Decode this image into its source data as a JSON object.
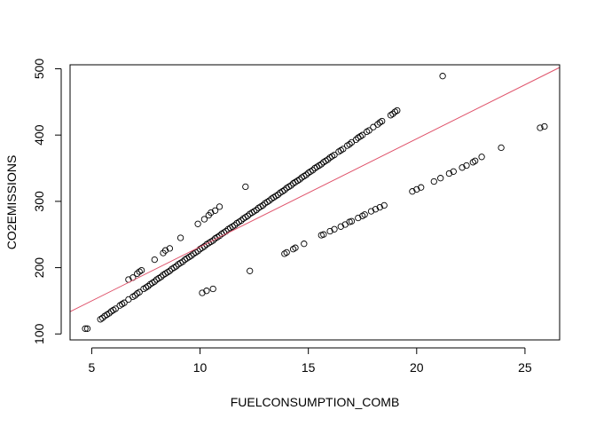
{
  "chart_data": {
    "type": "scatter",
    "title": "",
    "xlabel": "FUELCONSUMPTION_COMB",
    "ylabel": "CO2EMISSIONS",
    "xlim": [
      4,
      26.6
    ],
    "ylim": [
      91,
      506
    ],
    "xticks": [
      5,
      10,
      15,
      20,
      25
    ],
    "yticks": [
      100,
      200,
      300,
      400,
      500
    ],
    "xtick_labels": [
      "5",
      "10",
      "15",
      "20",
      "25"
    ],
    "ytick_labels": [
      "100",
      "200",
      "300",
      "400",
      "500"
    ],
    "grid": false,
    "legend": "none",
    "regression_line": {
      "intercept": 68.4,
      "slope": 16.3,
      "color": "#DF536B"
    },
    "series": [
      {
        "marker": "open-circle",
        "color": "#000000",
        "points": [
          [
            4.7,
            108
          ],
          [
            4.8,
            108
          ],
          [
            5.4,
            122
          ],
          [
            5.5,
            124
          ],
          [
            5.6,
            127
          ],
          [
            5.7,
            129
          ],
          [
            5.8,
            131
          ],
          [
            5.9,
            134
          ],
          [
            6.0,
            136
          ],
          [
            6.1,
            138
          ],
          [
            6.3,
            143
          ],
          [
            6.4,
            145
          ],
          [
            6.5,
            147
          ],
          [
            6.7,
            152
          ],
          [
            6.9,
            156
          ],
          [
            7.0,
            158
          ],
          [
            7.1,
            161
          ],
          [
            7.2,
            163
          ],
          [
            7.4,
            168
          ],
          [
            7.5,
            170
          ],
          [
            7.6,
            172
          ],
          [
            7.7,
            175
          ],
          [
            7.8,
            177
          ],
          [
            7.9,
            179
          ],
          [
            8.0,
            182
          ],
          [
            8.1,
            184
          ],
          [
            8.2,
            186
          ],
          [
            8.3,
            189
          ],
          [
            8.4,
            191
          ],
          [
            8.5,
            193
          ],
          [
            8.6,
            195
          ],
          [
            8.7,
            198
          ],
          [
            8.8,
            200
          ],
          [
            8.9,
            202
          ],
          [
            9.0,
            205
          ],
          [
            9.1,
            207
          ],
          [
            9.2,
            209
          ],
          [
            9.3,
            212
          ],
          [
            9.4,
            214
          ],
          [
            9.5,
            216
          ],
          [
            9.6,
            218
          ],
          [
            9.7,
            221
          ],
          [
            9.8,
            223
          ],
          [
            9.9,
            225
          ],
          [
            10.0,
            228
          ],
          [
            10.1,
            230
          ],
          [
            10.2,
            232
          ],
          [
            10.3,
            235
          ],
          [
            10.4,
            237
          ],
          [
            10.5,
            239
          ],
          [
            10.6,
            241
          ],
          [
            10.7,
            244
          ],
          [
            10.8,
            246
          ],
          [
            10.9,
            248
          ],
          [
            11.0,
            251
          ],
          [
            11.1,
            253
          ],
          [
            11.2,
            255
          ],
          [
            11.3,
            258
          ],
          [
            11.4,
            260
          ],
          [
            11.5,
            262
          ],
          [
            11.6,
            264
          ],
          [
            11.7,
            267
          ],
          [
            11.8,
            269
          ],
          [
            11.9,
            271
          ],
          [
            12.0,
            274
          ],
          [
            12.1,
            276
          ],
          [
            12.2,
            278
          ],
          [
            12.3,
            281
          ],
          [
            12.4,
            283
          ],
          [
            12.5,
            285
          ],
          [
            12.6,
            287
          ],
          [
            12.7,
            290
          ],
          [
            12.8,
            292
          ],
          [
            12.9,
            294
          ],
          [
            13.0,
            297
          ],
          [
            13.1,
            299
          ],
          [
            13.2,
            301
          ],
          [
            13.3,
            304
          ],
          [
            13.4,
            306
          ],
          [
            13.5,
            308
          ],
          [
            13.6,
            310
          ],
          [
            13.7,
            313
          ],
          [
            13.8,
            315
          ],
          [
            13.9,
            317
          ],
          [
            14.0,
            320
          ],
          [
            14.1,
            322
          ],
          [
            14.2,
            324
          ],
          [
            14.3,
            327
          ],
          [
            14.4,
            329
          ],
          [
            14.5,
            331
          ],
          [
            14.6,
            333
          ],
          [
            14.7,
            336
          ],
          [
            14.8,
            338
          ],
          [
            14.9,
            340
          ],
          [
            15.0,
            343
          ],
          [
            15.1,
            345
          ],
          [
            15.2,
            347
          ],
          [
            15.3,
            350
          ],
          [
            15.4,
            352
          ],
          [
            15.5,
            354
          ],
          [
            15.6,
            356
          ],
          [
            15.7,
            359
          ],
          [
            15.8,
            361
          ],
          [
            15.9,
            363
          ],
          [
            16.0,
            366
          ],
          [
            16.1,
            368
          ],
          [
            16.2,
            370
          ],
          [
            16.4,
            375
          ],
          [
            16.5,
            377
          ],
          [
            16.6,
            379
          ],
          [
            16.8,
            384
          ],
          [
            16.9,
            386
          ],
          [
            17.0,
            389
          ],
          [
            17.2,
            393
          ],
          [
            17.3,
            396
          ],
          [
            17.4,
            398
          ],
          [
            17.5,
            400
          ],
          [
            17.7,
            405
          ],
          [
            17.8,
            407
          ],
          [
            18.0,
            412
          ],
          [
            18.2,
            416
          ],
          [
            18.3,
            419
          ],
          [
            18.4,
            421
          ],
          [
            18.8,
            430
          ],
          [
            18.9,
            432
          ],
          [
            19.0,
            435
          ],
          [
            19.1,
            437
          ],
          [
            6.7,
            182
          ],
          [
            6.9,
            185
          ],
          [
            7.1,
            191
          ],
          [
            7.2,
            194
          ],
          [
            7.3,
            196
          ],
          [
            7.9,
            212
          ],
          [
            8.3,
            222
          ],
          [
            8.4,
            226
          ],
          [
            8.6,
            229
          ],
          [
            9.1,
            245
          ],
          [
            9.9,
            266
          ],
          [
            10.2,
            273
          ],
          [
            10.4,
            279
          ],
          [
            10.5,
            283
          ],
          [
            10.7,
            286
          ],
          [
            10.9,
            292
          ],
          [
            12.1,
            322
          ],
          [
            10.1,
            162
          ],
          [
            10.3,
            165
          ],
          [
            10.6,
            168
          ],
          [
            12.3,
            195
          ],
          [
            13.9,
            221
          ],
          [
            14.0,
            223
          ],
          [
            14.3,
            228
          ],
          [
            14.4,
            230
          ],
          [
            14.8,
            236
          ],
          [
            15.6,
            249
          ],
          [
            15.7,
            250
          ],
          [
            16.0,
            255
          ],
          [
            16.2,
            258
          ],
          [
            16.5,
            262
          ],
          [
            16.7,
            265
          ],
          [
            16.9,
            269
          ],
          [
            17.0,
            270
          ],
          [
            17.3,
            275
          ],
          [
            17.5,
            278
          ],
          [
            17.6,
            280
          ],
          [
            17.9,
            285
          ],
          [
            18.1,
            288
          ],
          [
            18.3,
            291
          ],
          [
            18.5,
            294
          ],
          [
            19.8,
            315
          ],
          [
            20.0,
            318
          ],
          [
            20.2,
            321
          ],
          [
            20.8,
            330
          ],
          [
            21.1,
            335
          ],
          [
            21.5,
            342
          ],
          [
            21.7,
            345
          ],
          [
            22.1,
            351
          ],
          [
            22.3,
            354
          ],
          [
            22.6,
            359
          ],
          [
            22.7,
            361
          ],
          [
            23.0,
            367
          ],
          [
            23.9,
            381
          ],
          [
            25.7,
            411
          ],
          [
            25.9,
            413
          ],
          [
            21.2,
            489
          ]
        ]
      }
    ]
  }
}
